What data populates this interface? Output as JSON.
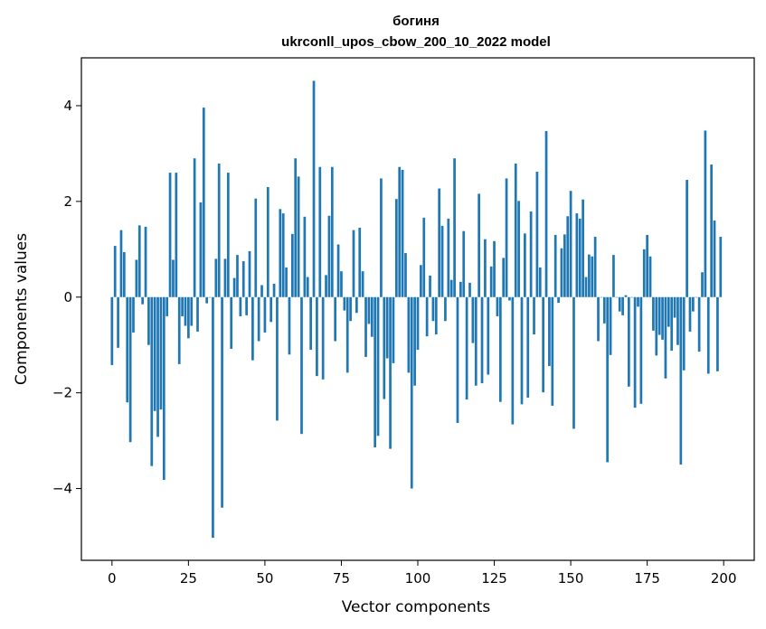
{
  "chart_data": {
    "type": "bar",
    "title_line1": "богиня",
    "title_line2": "ukrconll_upos_cbow_200_10_2022 model",
    "xlabel": "Vector components",
    "ylabel": "Components values",
    "xlim": [
      -10,
      210
    ],
    "ylim": [
      -5.5,
      5.0
    ],
    "xticks": [
      0,
      25,
      50,
      75,
      100,
      125,
      150,
      175,
      200
    ],
    "xtick_labels": [
      "0",
      "25",
      "50",
      "75",
      "100",
      "125",
      "150",
      "175",
      "200"
    ],
    "yticks": [
      -4,
      -2,
      0,
      2,
      4
    ],
    "ytick_labels": [
      "−4",
      "−2",
      "0",
      "2",
      "4"
    ],
    "bar_color": "#1f77b4",
    "values": [
      -1.42,
      1.07,
      -1.06,
      1.4,
      0.94,
      -2.2,
      -3.03,
      -0.74,
      0.78,
      1.5,
      -0.15,
      1.47,
      -1.0,
      -3.53,
      -2.38,
      -2.92,
      -2.35,
      -3.82,
      -0.4,
      2.6,
      0.78,
      2.6,
      -1.4,
      -0.4,
      -0.6,
      -0.86,
      -0.6,
      2.9,
      -0.72,
      1.98,
      3.96,
      -0.13,
      0.0,
      -5.03,
      0.8,
      2.79,
      -4.4,
      0.8,
      2.6,
      -1.08,
      0.4,
      0.88,
      -0.4,
      0.75,
      -0.38,
      0.96,
      -1.32,
      2.06,
      -0.92,
      0.25,
      -0.74,
      2.3,
      -0.52,
      0.28,
      -2.58,
      1.84,
      1.75,
      0.62,
      -1.2,
      1.32,
      2.9,
      2.52,
      -2.86,
      1.68,
      0.42,
      -1.1,
      4.52,
      -1.65,
      2.72,
      -1.72,
      0.46,
      1.7,
      2.72,
      -0.92,
      1.1,
      0.54,
      -0.28,
      -1.58,
      -0.5,
      1.4,
      -0.33,
      1.45,
      0.54,
      -1.25,
      -0.56,
      -0.83,
      -3.14,
      -2.9,
      2.48,
      -2.13,
      -1.28,
      -3.17,
      -1.38,
      2.05,
      2.72,
      2.66,
      0.92,
      -1.58,
      -4.0,
      -1.85,
      -1.1,
      0.67,
      1.66,
      -0.82,
      0.45,
      -0.5,
      -0.78,
      2.27,
      1.49,
      -0.5,
      1.64,
      0.36,
      2.9,
      -2.63,
      0.32,
      1.38,
      -2.14,
      0.3,
      -0.96,
      -1.85,
      2.16,
      -1.8,
      1.21,
      -1.62,
      0.64,
      1.17,
      -0.4,
      -2.19,
      0.82,
      2.48,
      -0.07,
      -2.66,
      2.79,
      2.01,
      -2.24,
      1.33,
      -2.1,
      1.79,
      -0.78,
      2.62,
      0.62,
      -1.99,
      3.47,
      -1.44,
      -2.27,
      1.3,
      -0.12,
      1.02,
      1.31,
      1.69,
      2.22,
      -2.75,
      1.75,
      1.64,
      2.04,
      0.42,
      0.89,
      0.85,
      1.26,
      -0.92,
      0.0,
      -0.55,
      -3.45,
      -1.21,
      0.88,
      0.0,
      -0.3,
      -0.38,
      0.04,
      -1.87,
      0.0,
      -2.31,
      -0.2,
      -2.23,
      1.0,
      1.3,
      0.85,
      -0.7,
      -1.22,
      -0.79,
      -0.89,
      -1.7,
      -0.62,
      -1.12,
      -0.43,
      -1.0,
      -3.5,
      -1.53,
      2.45,
      -0.72,
      -0.3,
      0.0,
      -1.14,
      0.52,
      3.48,
      -1.6,
      2.77,
      1.6,
      -1.55,
      1.26
    ]
  }
}
